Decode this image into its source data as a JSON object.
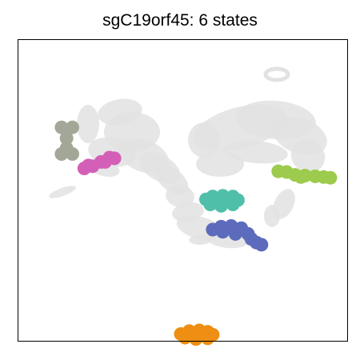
{
  "chart_data": {
    "type": "scatter",
    "title": "sgC19orf45: 6 states",
    "xlabel": "",
    "ylabel": "",
    "grid": false,
    "legend": "none",
    "background_color": "#e2e2e2",
    "state_colors": [
      "#a3a797",
      "#d45fb6",
      "#9ccb4d",
      "#50bfa9",
      "#5c6bbb",
      "#ee8e12"
    ],
    "series": [
      {
        "color": "#a3a797",
        "points": [
          [
            -0.22,
            0.62
          ],
          [
            -0.09,
            0.62
          ],
          [
            -0.22,
            0.25
          ],
          [
            -0.09,
            0.25
          ],
          [
            -0.16,
            0.47
          ],
          [
            -0.16,
            0.33
          ]
        ]
      },
      {
        "color": "#d45fb6",
        "points": [
          [
            0.05,
            0.05
          ],
          [
            0.15,
            0.08
          ],
          [
            0.25,
            0.14
          ],
          [
            0.35,
            0.2
          ],
          [
            0.41,
            0.19
          ],
          [
            0.1,
            0.09
          ],
          [
            0.3,
            0.14
          ]
        ]
      },
      {
        "color": "#9ccb4d",
        "points": [
          [
            2.36,
            0.01
          ],
          [
            2.46,
            0.0
          ],
          [
            2.56,
            -0.04
          ],
          [
            2.68,
            -0.05
          ],
          [
            2.8,
            -0.06
          ],
          [
            2.9,
            -0.07
          ],
          [
            2.98,
            -0.08
          ],
          [
            2.63,
            -0.07
          ]
        ]
      },
      {
        "color": "#50bfa9",
        "points": [
          [
            1.5,
            -0.38
          ],
          [
            1.58,
            -0.34
          ],
          [
            1.7,
            -0.33
          ],
          [
            1.82,
            -0.34
          ],
          [
            1.88,
            -0.39
          ],
          [
            1.82,
            -0.45
          ],
          [
            1.68,
            -0.47
          ],
          [
            1.55,
            -0.45
          ]
        ]
      },
      {
        "color": "#5c6bbb",
        "points": [
          [
            1.58,
            -0.8
          ],
          [
            1.68,
            -0.76
          ],
          [
            1.8,
            -0.75
          ],
          [
            1.92,
            -0.78
          ],
          [
            2.0,
            -0.86
          ],
          [
            2.04,
            -0.93
          ],
          [
            2.1,
            -0.98
          ],
          [
            2.16,
            -1.01
          ],
          [
            1.7,
            -0.83
          ],
          [
            1.85,
            -0.86
          ]
        ]
      },
      {
        "color": "#ee8e12",
        "points": [
          [
            1.2,
            -2.25
          ],
          [
            1.3,
            -2.21
          ],
          [
            1.42,
            -2.2
          ],
          [
            1.52,
            -2.22
          ],
          [
            1.58,
            -2.26
          ],
          [
            1.52,
            -2.31
          ],
          [
            1.38,
            -2.32
          ],
          [
            1.25,
            -2.3
          ]
        ]
      }
    ]
  }
}
